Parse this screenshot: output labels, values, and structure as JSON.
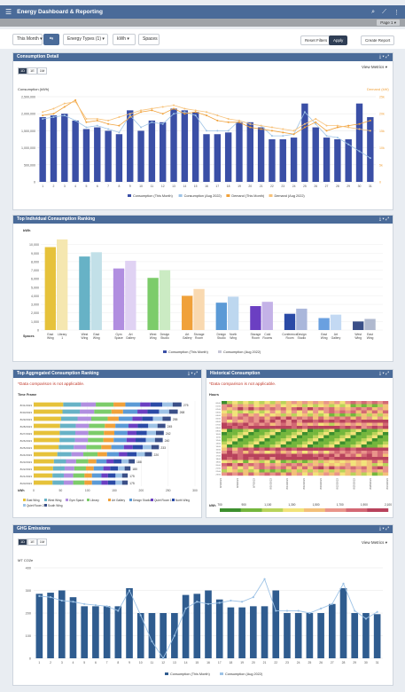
{
  "app": {
    "title": "Energy Dashboard & Reporting",
    "page_label": "Page 1"
  },
  "filters": {
    "period": "This Month",
    "energy_types": "Energy Types (1)",
    "unit": "kWh",
    "spaces": "Spaces",
    "reset": "Reset Filters",
    "apply": "Apply",
    "create_report": "Create Report"
  },
  "colors": {
    "header": "#4a6b99",
    "bar": "#3a4fa6",
    "light": "#9ec3e6",
    "orange": "#f0a13a"
  },
  "panels": {
    "consumption": {
      "title": "Consumption Detail",
      "view_metrics": "View Metrics",
      "segments": [
        "1D",
        "1E",
        "1M"
      ],
      "unit_left": "Consumption (kWh)",
      "unit_right": "Demand (kW)",
      "legend": [
        "Consumption (This Month)",
        "Consumption (Aug 2022)",
        "Demand (This Month)",
        "Demand (Aug 2022)"
      ]
    },
    "ranking": {
      "title": "Top Individual Consumption Ranking",
      "unit": "kWh",
      "spaces_label": "Spaces",
      "legend": [
        "Consumption (This Month)",
        "Consumption (Aug 2022)"
      ]
    },
    "aggregated": {
      "title": "Top Aggregated Consumption Ranking",
      "note": "*Data comparison is not applicable.",
      "axis_label": "Time Frame",
      "unit": "kWh",
      "legend": [
        "East Wing",
        "West Wing",
        "Gym Space",
        "Library",
        "Art Gallery",
        "Design Studio",
        "Quiet Room 1",
        "North Wing",
        "Quiet Room 2",
        "South Wing"
      ]
    },
    "historical": {
      "title": "Historical Consumption",
      "note": "*Data comparison is not applicable.",
      "axis_label": "Hours",
      "unit": "kWh",
      "scale_ticks": [
        "700",
        "900",
        "1,100",
        "1,300",
        "1,500",
        "1,700",
        "1,900",
        "2,100"
      ]
    },
    "ghg": {
      "title": "GHG Emissions",
      "view_metrics": "View Metrics",
      "segments": [
        "1D",
        "1E",
        "1M"
      ],
      "unit": "MT CO2e",
      "legend": [
        "Consumption (This Month)",
        "Consumption (Aug 2022)"
      ]
    }
  },
  "chart_data": [
    {
      "type": "bar",
      "title": "Consumption Detail",
      "categories": [
        "1",
        "2",
        "3",
        "4",
        "5",
        "6",
        "7",
        "8",
        "9",
        "10",
        "11",
        "12",
        "13",
        "14",
        "15",
        "16",
        "17",
        "18",
        "19",
        "20",
        "21",
        "22",
        "23",
        "24",
        "25",
        "26",
        "27",
        "28",
        "29",
        "30",
        "31"
      ],
      "ylim": [
        0,
        2500000
      ],
      "yticks": [
        "0",
        "500,000",
        "1,000,000",
        "1,500,000",
        "2,000,000",
        "2,500,000"
      ],
      "y2ticks": [
        "0",
        "5k",
        "10k",
        "15k",
        "20k",
        "25k"
      ],
      "series": [
        {
          "name": "Consumption (This Month)",
          "values": [
            1900000,
            1950000,
            2000000,
            1800000,
            1550000,
            1600000,
            1500000,
            1400000,
            2100000,
            1500000,
            1800000,
            1750000,
            2150000,
            2100000,
            2050000,
            1400000,
            1400000,
            1450000,
            1750000,
            1750000,
            1600000,
            1250000,
            1250000,
            1300000,
            2300000,
            1600000,
            1300000,
            1250000,
            1250000,
            2300000,
            1900000
          ]
        },
        {
          "name": "Consumption (Aug 2022)",
          "values": [
            1850000,
            1900000,
            1950000,
            1800000,
            1600000,
            1650000,
            1550000,
            1450000,
            1950000,
            1600000,
            1750000,
            1700000,
            2000000,
            2050000,
            1950000,
            1500000,
            1500000,
            1500000,
            1800000,
            1700000,
            1650000,
            1350000,
            1350000,
            1400000,
            2050000,
            1700000,
            1350000,
            1300000,
            1100000,
            900000,
            700000
          ]
        },
        {
          "name": "Demand (This Month)",
          "values": [
            1950000,
            2000000,
            2200000,
            2400000,
            1750000,
            1800000,
            1700000,
            1650000,
            1900000,
            2050000,
            2100000,
            2000000,
            2150000,
            2000000,
            2050000,
            1950000,
            1800000,
            1750000,
            1750000,
            1600000,
            1550000,
            1500000,
            1450000,
            1400000,
            1600000,
            1750000,
            1500000,
            1600000,
            1650000,
            1700000,
            1800000
          ]
        },
        {
          "name": "Demand (Aug 2022)",
          "values": [
            2050000,
            2150000,
            2300000,
            2350000,
            1850000,
            1850000,
            1800000,
            1900000,
            2000000,
            2100000,
            2150000,
            2200000,
            2250000,
            2150000,
            2100000,
            2050000,
            1950000,
            1850000,
            1800000,
            1700000,
            1650000,
            1600000,
            1550000,
            1500000,
            1700000,
            1850000,
            1650000,
            1650000,
            1600000,
            1550000,
            1500000
          ]
        }
      ]
    },
    {
      "type": "bar",
      "title": "Top Individual Consumption Ranking",
      "categories": [
        "East Wing",
        "Library 1",
        "West Wing",
        "East Wing",
        "Gym Space",
        "Art Gallery",
        "West Wing",
        "Design Studio",
        "Art Gallery",
        "Storage Room",
        "Design Studio",
        "North Wing",
        "Storage Room",
        "Cold Rooms",
        "Conference Room",
        "Design Studio",
        "East Wing",
        "Art Gallery",
        "West Wing",
        "East Wing"
      ],
      "ylim": [
        0,
        11000
      ],
      "yticks": [
        "0",
        "1,000",
        "2,000",
        "3,000",
        "4,000",
        "5,000",
        "6,000",
        "7,000",
        "8,000",
        "9,000",
        "10,000"
      ],
      "pairs": [
        {
          "a": 9700,
          "b": 10600,
          "color": "#e6c23a"
        },
        {
          "a": 8600,
          "b": 9100,
          "color": "#67b2c6"
        },
        {
          "a": 7200,
          "b": 8100,
          "color": "#b18ee0"
        },
        {
          "a": 6100,
          "b": 7000,
          "color": "#7ccc6a"
        },
        {
          "a": 4000,
          "b": 4800,
          "color": "#f0a13a"
        },
        {
          "a": 3200,
          "b": 3900,
          "color": "#5b9ad6"
        },
        {
          "a": 2800,
          "b": 3300,
          "color": "#6b3fc2"
        },
        {
          "a": 1900,
          "b": 2500,
          "color": "#2a4aa6"
        },
        {
          "a": 1400,
          "b": 1800,
          "color": "#6aa0e0"
        },
        {
          "a": 1000,
          "b": 1300,
          "color": "#3a4f88"
        }
      ]
    },
    {
      "type": "bar",
      "title": "Top Aggregated Consumption Ranking",
      "categories": [
        "8/31/2023",
        "8/30/2023",
        "8/29/2023",
        "8/28/2023",
        "8/27/2023",
        "8/26/2023",
        "8/25/2023",
        "8/24/2023",
        "8/23/2023",
        "8/22/2023",
        "8/21/2023",
        "8/20/2023"
      ],
      "xlim": [
        0,
        300
      ],
      "xticks": [
        "0",
        "50",
        "100",
        "150",
        "200",
        "250",
        "300"
      ],
      "values": [
        275,
        268,
        255,
        245,
        242,
        240,
        233,
        220,
        188,
        180,
        175,
        175
      ]
    },
    {
      "type": "heatmap",
      "title": "Historical Consumption",
      "xlabels": [
        "8/1/2023",
        "8/4/2023",
        "8/7/2023",
        "8/10/2023",
        "8/13/2023",
        "8/16/2023",
        "8/19/2023",
        "8/22/2023",
        "8/25/2023",
        "8/28/2023",
        "8/31/2023"
      ],
      "range": [
        700,
        2100
      ]
    },
    {
      "type": "bar",
      "title": "GHG Emissions",
      "categories": [
        "1",
        "2",
        "3",
        "4",
        "5",
        "6",
        "7",
        "8",
        "9",
        "10",
        "11",
        "12",
        "13",
        "14",
        "15",
        "16",
        "17",
        "18",
        "19",
        "20",
        "21",
        "22",
        "23",
        "24",
        "25",
        "26",
        "27",
        "28",
        "29",
        "30",
        "31"
      ],
      "ylim": [
        0,
        400
      ],
      "yticks": [
        "0",
        "100",
        "200",
        "300",
        "400"
      ],
      "series": [
        {
          "name": "Consumption (This Month)",
          "values": [
            285,
            290,
            300,
            270,
            230,
            230,
            230,
            230,
            310,
            200,
            200,
            200,
            200,
            280,
            285,
            300,
            260,
            225,
            225,
            230,
            230,
            300,
            200,
            200,
            200,
            200,
            240,
            310,
            200,
            200,
            195
          ]
        },
        {
          "name": "Consumption (Aug 2022)",
          "values": [
            275,
            270,
            255,
            250,
            240,
            235,
            230,
            210,
            300,
            190,
            75,
            0,
            100,
            220,
            250,
            240,
            245,
            255,
            250,
            270,
            350,
            210,
            210,
            210,
            200,
            220,
            240,
            330,
            210,
            175,
            205
          ]
        }
      ]
    }
  ]
}
